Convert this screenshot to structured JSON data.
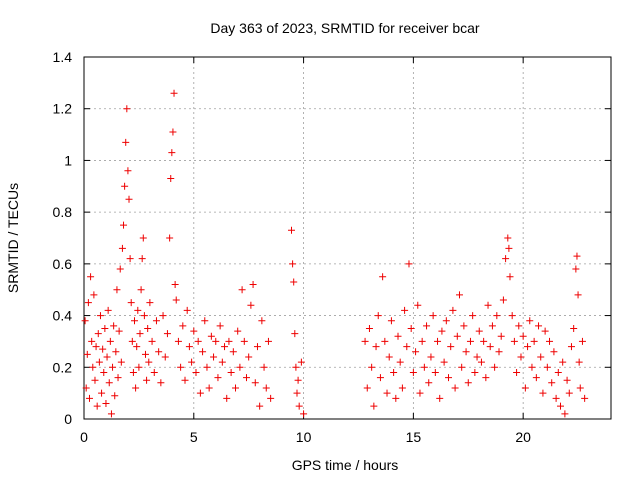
{
  "chart_data": {
    "type": "scatter",
    "title": "Day 363 of 2023, SRMTID for receiver bcar",
    "xlabel": "GPS time / hours",
    "ylabel": "SRMTID / TECUs",
    "xlim": [
      0,
      24
    ],
    "ylim": [
      0,
      1.4
    ],
    "xticks": [
      0,
      5,
      10,
      15,
      20
    ],
    "xtick_labels": [
      "0",
      "5",
      "10",
      "15",
      "20"
    ],
    "yticks": [
      0,
      0.2,
      0.4,
      0.6,
      0.8,
      1,
      1.2,
      1.4
    ],
    "ytick_labels": [
      "0",
      "0.2",
      "0.4",
      "0.6",
      "0.8",
      "1",
      "1.2",
      "1.4"
    ],
    "grid": true,
    "marker": "+",
    "color": "#ee0000",
    "series": [
      {
        "name": "SRMTID",
        "points": [
          [
            0.05,
            0.38
          ],
          [
            0.1,
            0.12
          ],
          [
            0.15,
            0.25
          ],
          [
            0.2,
            0.45
          ],
          [
            0.25,
            0.08
          ],
          [
            0.3,
            0.55
          ],
          [
            0.35,
            0.3
          ],
          [
            0.4,
            0.2
          ],
          [
            0.45,
            0.48
          ],
          [
            0.5,
            0.15
          ],
          [
            0.55,
            0.28
          ],
          [
            0.6,
            0.05
          ],
          [
            0.65,
            0.33
          ],
          [
            0.7,
            0.22
          ],
          [
            0.75,
            0.4
          ],
          [
            0.8,
            0.1
          ],
          [
            0.85,
            0.27
          ],
          [
            0.9,
            0.18
          ],
          [
            0.95,
            0.35
          ],
          [
            1.0,
            0.06
          ],
          [
            1.05,
            0.24
          ],
          [
            1.1,
            0.42
          ],
          [
            1.15,
            0.14
          ],
          [
            1.2,
            0.3
          ],
          [
            1.25,
            0.02
          ],
          [
            1.3,
            0.2
          ],
          [
            1.35,
            0.36
          ],
          [
            1.4,
            0.09
          ],
          [
            1.45,
            0.26
          ],
          [
            1.5,
            0.5
          ],
          [
            1.55,
            0.16
          ],
          [
            1.6,
            0.34
          ],
          [
            1.65,
            0.58
          ],
          [
            1.7,
            0.22
          ],
          [
            1.75,
            0.66
          ],
          [
            1.8,
            0.75
          ],
          [
            1.85,
            0.9
          ],
          [
            1.9,
            1.07
          ],
          [
            1.95,
            1.2
          ],
          [
            2.0,
            0.96
          ],
          [
            2.05,
            0.85
          ],
          [
            2.1,
            0.62
          ],
          [
            2.15,
            0.45
          ],
          [
            2.2,
            0.3
          ],
          [
            2.25,
            0.18
          ],
          [
            2.3,
            0.38
          ],
          [
            2.35,
            0.12
          ],
          [
            2.4,
            0.28
          ],
          [
            2.45,
            0.42
          ],
          [
            2.5,
            0.2
          ],
          [
            2.55,
            0.33
          ],
          [
            2.6,
            0.5
          ],
          [
            2.65,
            0.62
          ],
          [
            2.7,
            0.7
          ],
          [
            2.75,
            0.4
          ],
          [
            2.8,
            0.25
          ],
          [
            2.85,
            0.15
          ],
          [
            2.9,
            0.35
          ],
          [
            2.95,
            0.22
          ],
          [
            3.0,
            0.45
          ],
          [
            3.1,
            0.3
          ],
          [
            3.2,
            0.18
          ],
          [
            3.3,
            0.38
          ],
          [
            3.4,
            0.26
          ],
          [
            3.5,
            0.14
          ],
          [
            3.6,
            0.4
          ],
          [
            3.7,
            0.24
          ],
          [
            3.8,
            0.33
          ],
          [
            3.9,
            0.7
          ],
          [
            3.95,
            0.93
          ],
          [
            4.0,
            1.03
          ],
          [
            4.05,
            1.11
          ],
          [
            4.1,
            1.26
          ],
          [
            4.15,
            0.52
          ],
          [
            4.2,
            0.46
          ],
          [
            4.3,
            0.3
          ],
          [
            4.4,
            0.2
          ],
          [
            4.5,
            0.36
          ],
          [
            4.6,
            0.15
          ],
          [
            4.7,
            0.42
          ],
          [
            4.8,
            0.28
          ],
          [
            4.9,
            0.22
          ],
          [
            5.0,
            0.34
          ],
          [
            5.1,
            0.18
          ],
          [
            5.2,
            0.3
          ],
          [
            5.3,
            0.1
          ],
          [
            5.4,
            0.26
          ],
          [
            5.5,
            0.38
          ],
          [
            5.6,
            0.2
          ],
          [
            5.7,
            0.12
          ],
          [
            5.8,
            0.32
          ],
          [
            5.9,
            0.24
          ],
          [
            6.0,
            0.3
          ],
          [
            6.1,
            0.16
          ],
          [
            6.2,
            0.36
          ],
          [
            6.3,
            0.22
          ],
          [
            6.4,
            0.28
          ],
          [
            6.5,
            0.08
          ],
          [
            6.6,
            0.3
          ],
          [
            6.7,
            0.18
          ],
          [
            6.8,
            0.26
          ],
          [
            6.9,
            0.12
          ],
          [
            7.0,
            0.34
          ],
          [
            7.1,
            0.2
          ],
          [
            7.2,
            0.5
          ],
          [
            7.3,
            0.3
          ],
          [
            7.4,
            0.16
          ],
          [
            7.5,
            0.24
          ],
          [
            7.6,
            0.44
          ],
          [
            7.7,
            0.52
          ],
          [
            7.8,
            0.14
          ],
          [
            7.9,
            0.28
          ],
          [
            8.0,
            0.05
          ],
          [
            8.1,
            0.38
          ],
          [
            8.2,
            0.2
          ],
          [
            8.3,
            0.12
          ],
          [
            8.4,
            0.3
          ],
          [
            8.5,
            0.08
          ],
          [
            9.45,
            0.73
          ],
          [
            9.5,
            0.6
          ],
          [
            9.55,
            0.53
          ],
          [
            9.6,
            0.33
          ],
          [
            9.65,
            0.2
          ],
          [
            9.7,
            0.1
          ],
          [
            9.75,
            0.15
          ],
          [
            9.8,
            0.05
          ],
          [
            9.9,
            0.22
          ],
          [
            10.0,
            0.02
          ],
          [
            12.8,
            0.3
          ],
          [
            12.9,
            0.12
          ],
          [
            13.0,
            0.35
          ],
          [
            13.1,
            0.2
          ],
          [
            13.2,
            0.05
          ],
          [
            13.3,
            0.28
          ],
          [
            13.4,
            0.4
          ],
          [
            13.5,
            0.16
          ],
          [
            13.6,
            0.55
          ],
          [
            13.7,
            0.3
          ],
          [
            13.8,
            0.1
          ],
          [
            13.9,
            0.24
          ],
          [
            14.0,
            0.38
          ],
          [
            14.1,
            0.18
          ],
          [
            14.2,
            0.08
          ],
          [
            14.3,
            0.32
          ],
          [
            14.4,
            0.22
          ],
          [
            14.5,
            0.12
          ],
          [
            14.6,
            0.42
          ],
          [
            14.7,
            0.28
          ],
          [
            14.8,
            0.6
          ],
          [
            14.9,
            0.35
          ],
          [
            15.0,
            0.18
          ],
          [
            15.1,
            0.26
          ],
          [
            15.2,
            0.44
          ],
          [
            15.3,
            0.1
          ],
          [
            15.4,
            0.3
          ],
          [
            15.5,
            0.2
          ],
          [
            15.6,
            0.36
          ],
          [
            15.7,
            0.14
          ],
          [
            15.8,
            0.24
          ],
          [
            15.9,
            0.4
          ],
          [
            16.0,
            0.18
          ],
          [
            16.1,
            0.3
          ],
          [
            16.2,
            0.08
          ],
          [
            16.3,
            0.34
          ],
          [
            16.4,
            0.22
          ],
          [
            16.5,
            0.38
          ],
          [
            16.6,
            0.16
          ],
          [
            16.7,
            0.28
          ],
          [
            16.8,
            0.42
          ],
          [
            16.9,
            0.12
          ],
          [
            17.0,
            0.32
          ],
          [
            17.1,
            0.48
          ],
          [
            17.2,
            0.2
          ],
          [
            17.3,
            0.36
          ],
          [
            17.4,
            0.26
          ],
          [
            17.5,
            0.14
          ],
          [
            17.6,
            0.3
          ],
          [
            17.7,
            0.4
          ],
          [
            17.8,
            0.18
          ],
          [
            17.9,
            0.24
          ],
          [
            18.0,
            0.34
          ],
          [
            18.1,
            0.22
          ],
          [
            18.2,
            0.3
          ],
          [
            18.3,
            0.16
          ],
          [
            18.4,
            0.44
          ],
          [
            18.5,
            0.28
          ],
          [
            18.6,
            0.36
          ],
          [
            18.7,
            0.2
          ],
          [
            18.8,
            0.4
          ],
          [
            18.9,
            0.26
          ],
          [
            19.0,
            0.32
          ],
          [
            19.1,
            0.46
          ],
          [
            19.2,
            0.62
          ],
          [
            19.3,
            0.7
          ],
          [
            19.35,
            0.66
          ],
          [
            19.4,
            0.55
          ],
          [
            19.5,
            0.4
          ],
          [
            19.6,
            0.3
          ],
          [
            19.7,
            0.18
          ],
          [
            19.8,
            0.36
          ],
          [
            19.9,
            0.24
          ],
          [
            20.0,
            0.32
          ],
          [
            20.1,
            0.12
          ],
          [
            20.2,
            0.28
          ],
          [
            20.3,
            0.38
          ],
          [
            20.4,
            0.2
          ],
          [
            20.5,
            0.3
          ],
          [
            20.6,
            0.16
          ],
          [
            20.7,
            0.36
          ],
          [
            20.8,
            0.24
          ],
          [
            20.9,
            0.1
          ],
          [
            21.0,
            0.34
          ],
          [
            21.1,
            0.2
          ],
          [
            21.2,
            0.3
          ],
          [
            21.3,
            0.14
          ],
          [
            21.4,
            0.26
          ],
          [
            21.5,
            0.08
          ],
          [
            21.6,
            0.18
          ],
          [
            21.7,
            0.05
          ],
          [
            21.8,
            0.22
          ],
          [
            21.9,
            0.02
          ],
          [
            22.0,
            0.15
          ],
          [
            22.1,
            0.1
          ],
          [
            22.2,
            0.28
          ],
          [
            22.3,
            0.35
          ],
          [
            22.4,
            0.58
          ],
          [
            22.45,
            0.63
          ],
          [
            22.5,
            0.48
          ],
          [
            22.55,
            0.22
          ],
          [
            22.6,
            0.12
          ],
          [
            22.7,
            0.3
          ],
          [
            22.8,
            0.08
          ]
        ]
      }
    ]
  }
}
